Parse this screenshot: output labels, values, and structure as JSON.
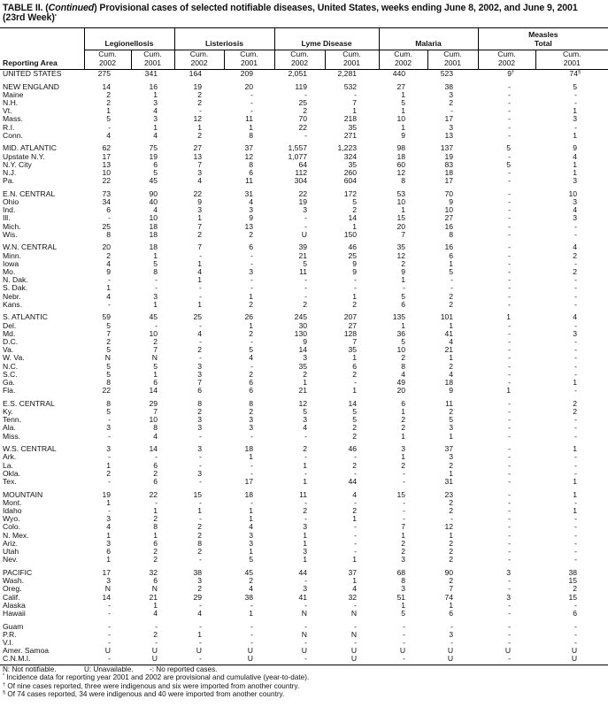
{
  "title": {
    "prefix": "TABLE II. (",
    "continued": "Continued",
    "text": ") Provisional cases of selected notifiable diseases, United States, weeks ending June 8, 2002, and June 9, 2001 (23rd Week)",
    "marker": "*"
  },
  "header": {
    "reporting_area": "Reporting Area",
    "groups": [
      "Legionellosis",
      "Listeriosis",
      "Lyme Disease",
      "Malaria",
      "Measles Total"
    ],
    "measles_line1": "Measles",
    "measles_line2": "Total",
    "cum_2002": "Cum. 2002",
    "cum_2001": "Cum. 2001"
  },
  "sections": [
    [
      [
        "UNITED STATES",
        "275",
        "341",
        "164",
        "209",
        "2,051",
        "2,281",
        "440",
        "523",
        "9",
        "74"
      ]
    ],
    [
      [
        "NEW ENGLAND",
        "14",
        "16",
        "19",
        "20",
        "119",
        "532",
        "27",
        "38",
        "-",
        "5"
      ],
      [
        "Maine",
        "2",
        "1",
        "2",
        "-",
        "-",
        "-",
        "1",
        "3",
        "-",
        "-"
      ],
      [
        "N.H.",
        "2",
        "3",
        "2",
        "-",
        "25",
        "7",
        "5",
        "2",
        "-",
        "-"
      ],
      [
        "Vt.",
        "1",
        "4",
        "-",
        "-",
        "2",
        "1",
        "1",
        "-",
        "-",
        "1"
      ],
      [
        "Mass.",
        "5",
        "3",
        "12",
        "11",
        "70",
        "218",
        "10",
        "17",
        "-",
        "3"
      ],
      [
        "R.I.",
        "-",
        "1",
        "1",
        "1",
        "22",
        "35",
        "1",
        "3",
        "-",
        "-"
      ],
      [
        "Conn.",
        "4",
        "4",
        "2",
        "8",
        "-",
        "271",
        "9",
        "13",
        "-",
        "1"
      ]
    ],
    [
      [
        "MID. ATLANTIC",
        "62",
        "75",
        "27",
        "37",
        "1,557",
        "1,223",
        "98",
        "137",
        "5",
        "9"
      ],
      [
        "Upstate N.Y.",
        "17",
        "19",
        "13",
        "12",
        "1,077",
        "324",
        "18",
        "19",
        "-",
        "4"
      ],
      [
        "N.Y. City",
        "13",
        "6",
        "7",
        "8",
        "64",
        "35",
        "60",
        "83",
        "5",
        "1"
      ],
      [
        "N.J.",
        "10",
        "5",
        "3",
        "6",
        "112",
        "260",
        "12",
        "18",
        "-",
        "1"
      ],
      [
        "Pa.",
        "22",
        "45",
        "4",
        "11",
        "304",
        "604",
        "8",
        "17",
        "-",
        "3"
      ]
    ],
    [
      [
        "E.N. CENTRAL",
        "73",
        "90",
        "22",
        "31",
        "22",
        "172",
        "53",
        "70",
        "-",
        "10"
      ],
      [
        "Ohio",
        "34",
        "40",
        "9",
        "4",
        "19",
        "5",
        "10",
        "9",
        "-",
        "3"
      ],
      [
        "Ind.",
        "6",
        "4",
        "3",
        "3",
        "3",
        "2",
        "1",
        "10",
        "-",
        "4"
      ],
      [
        "Ill.",
        "-",
        "10",
        "1",
        "9",
        "-",
        "14",
        "15",
        "27",
        "-",
        "3"
      ],
      [
        "Mich.",
        "25",
        "18",
        "7",
        "13",
        "-",
        "1",
        "20",
        "16",
        "-",
        "-"
      ],
      [
        "Wis.",
        "8",
        "18",
        "2",
        "2",
        "U",
        "150",
        "7",
        "8",
        "-",
        "-"
      ]
    ],
    [
      [
        "W.N. CENTRAL",
        "20",
        "18",
        "7",
        "6",
        "39",
        "46",
        "35",
        "16",
        "-",
        "4"
      ],
      [
        "Minn.",
        "2",
        "1",
        "-",
        "-",
        "21",
        "25",
        "12",
        "6",
        "-",
        "2"
      ],
      [
        "Iowa",
        "4",
        "5",
        "1",
        "-",
        "5",
        "9",
        "2",
        "1",
        "-",
        "-"
      ],
      [
        "Mo.",
        "9",
        "8",
        "4",
        "3",
        "11",
        "9",
        "9",
        "5",
        "-",
        "2"
      ],
      [
        "N. Dak.",
        "-",
        "-",
        "1",
        "-",
        "-",
        "-",
        "1",
        "-",
        "-",
        "-"
      ],
      [
        "S. Dak.",
        "1",
        "-",
        "-",
        "-",
        "-",
        "-",
        "-",
        "-",
        "-",
        "-"
      ],
      [
        "Nebr.",
        "4",
        "3",
        "-",
        "1",
        "-",
        "1",
        "5",
        "2",
        "-",
        "-"
      ],
      [
        "Kans.",
        "-",
        "1",
        "1",
        "2",
        "2",
        "2",
        "6",
        "2",
        "-",
        "-"
      ]
    ],
    [
      [
        "S. ATLANTIC",
        "59",
        "45",
        "25",
        "26",
        "245",
        "207",
        "135",
        "101",
        "1",
        "4"
      ],
      [
        "Del.",
        "5",
        "-",
        "-",
        "1",
        "30",
        "27",
        "1",
        "1",
        "-",
        "-"
      ],
      [
        "Md.",
        "7",
        "10",
        "4",
        "2",
        "130",
        "128",
        "36",
        "41",
        "-",
        "3"
      ],
      [
        "D.C.",
        "2",
        "2",
        "-",
        "-",
        "9",
        "7",
        "5",
        "4",
        "-",
        "-"
      ],
      [
        "Va.",
        "5",
        "7",
        "2",
        "5",
        "14",
        "35",
        "10",
        "21",
        "-",
        "-"
      ],
      [
        "W. Va.",
        "N",
        "N",
        "-",
        "4",
        "3",
        "1",
        "2",
        "1",
        "-",
        "-"
      ],
      [
        "N.C.",
        "5",
        "5",
        "3",
        "-",
        "35",
        "6",
        "8",
        "2",
        "-",
        "-"
      ],
      [
        "S.C.",
        "5",
        "1",
        "3",
        "2",
        "2",
        "2",
        "4",
        "4",
        "-",
        "-"
      ],
      [
        "Ga.",
        "8",
        "6",
        "7",
        "6",
        "1",
        "-",
        "49",
        "18",
        "-",
        "1"
      ],
      [
        "Fla.",
        "22",
        "14",
        "6",
        "6",
        "21",
        "1",
        "20",
        "9",
        "1",
        "-"
      ]
    ],
    [
      [
        "E.S. CENTRAL",
        "8",
        "29",
        "8",
        "8",
        "12",
        "14",
        "6",
        "11",
        "-",
        "2"
      ],
      [
        "Ky.",
        "5",
        "7",
        "2",
        "2",
        "5",
        "5",
        "1",
        "2",
        "-",
        "2"
      ],
      [
        "Tenn.",
        "-",
        "10",
        "3",
        "3",
        "3",
        "5",
        "2",
        "5",
        "-",
        "-"
      ],
      [
        "Ala.",
        "3",
        "8",
        "3",
        "3",
        "4",
        "2",
        "2",
        "3",
        "-",
        "-"
      ],
      [
        "Miss.",
        "-",
        "4",
        "-",
        "-",
        "-",
        "2",
        "1",
        "1",
        "-",
        "-"
      ]
    ],
    [
      [
        "W.S. CENTRAL",
        "3",
        "14",
        "3",
        "18",
        "2",
        "46",
        "3",
        "37",
        "-",
        "1"
      ],
      [
        "Ark.",
        "-",
        "-",
        "-",
        "1",
        "-",
        "-",
        "1",
        "3",
        "-",
        "-"
      ],
      [
        "La.",
        "1",
        "6",
        "-",
        "-",
        "1",
        "2",
        "2",
        "2",
        "-",
        "-"
      ],
      [
        "Okla.",
        "2",
        "2",
        "3",
        "-",
        "-",
        "-",
        "-",
        "1",
        "-",
        "-"
      ],
      [
        "Tex.",
        "-",
        "6",
        "-",
        "17",
        "1",
        "44",
        "-",
        "31",
        "-",
        "1"
      ]
    ],
    [
      [
        "MOUNTAIN",
        "19",
        "22",
        "15",
        "18",
        "11",
        "4",
        "15",
        "23",
        "-",
        "1"
      ],
      [
        "Mont.",
        "1",
        "-",
        "-",
        "-",
        "-",
        "-",
        "-",
        "2",
        "-",
        "-"
      ],
      [
        "Idaho",
        "-",
        "1",
        "1",
        "1",
        "2",
        "2",
        "-",
        "2",
        "-",
        "1"
      ],
      [
        "Wyo.",
        "3",
        "2",
        "-",
        "1",
        "-",
        "1",
        "-",
        "-",
        "-",
        "-"
      ],
      [
        "Colo.",
        "4",
        "8",
        "2",
        "4",
        "3",
        "-",
        "7",
        "12",
        "-",
        "-"
      ],
      [
        "N. Mex.",
        "1",
        "1",
        "2",
        "3",
        "1",
        "-",
        "1",
        "1",
        "-",
        "-"
      ],
      [
        "Ariz.",
        "3",
        "6",
        "8",
        "3",
        "1",
        "-",
        "2",
        "2",
        "-",
        "-"
      ],
      [
        "Utah",
        "6",
        "2",
        "2",
        "1",
        "3",
        "-",
        "2",
        "2",
        "-",
        "-"
      ],
      [
        "Nev.",
        "1",
        "2",
        "-",
        "5",
        "1",
        "1",
        "3",
        "2",
        "-",
        "-"
      ]
    ],
    [
      [
        "PACIFIC",
        "17",
        "32",
        "38",
        "45",
        "44",
        "37",
        "68",
        "90",
        "3",
        "38"
      ],
      [
        "Wash.",
        "3",
        "6",
        "3",
        "2",
        "-",
        "1",
        "8",
        "2",
        "-",
        "15"
      ],
      [
        "Oreg.",
        "N",
        "N",
        "2",
        "4",
        "3",
        "4",
        "3",
        "7",
        "-",
        "2"
      ],
      [
        "Calif.",
        "14",
        "21",
        "29",
        "38",
        "41",
        "32",
        "51",
        "74",
        "3",
        "15"
      ],
      [
        "Alaska",
        "-",
        "1",
        "-",
        "-",
        "-",
        "-",
        "1",
        "1",
        "-",
        "-"
      ],
      [
        "Hawaii",
        "-",
        "4",
        "4",
        "1",
        "N",
        "N",
        "5",
        "6",
        "-",
        "6"
      ]
    ],
    [
      [
        "Guam",
        "-",
        "-",
        "-",
        "-",
        "-",
        "-",
        "-",
        "-",
        "-",
        "-"
      ],
      [
        "P.R.",
        "-",
        "2",
        "1",
        "-",
        "N",
        "N",
        "-",
        "3",
        "-",
        "-"
      ],
      [
        "V.I.",
        "-",
        "-",
        "-",
        "-",
        "-",
        "-",
        "-",
        "-",
        "-",
        "-"
      ],
      [
        "Amer. Samoa",
        "U",
        "U",
        "U",
        "U",
        "U",
        "U",
        "U",
        "U",
        "U",
        "U"
      ],
      [
        "C.N.M.I.",
        "-",
        "U",
        "-",
        "U",
        "-",
        "U",
        "-",
        "U",
        "-",
        "U"
      ]
    ]
  ],
  "superscripts": {
    "us_measles_2002": "†",
    "us_measles_2001": "§"
  },
  "footnotes": {
    "legend_n": "N: Not notifiable.",
    "legend_u": "U: Unavailable.",
    "legend_dash": "-: No reported cases.",
    "notes": [
      {
        "marker": "*",
        "text": " Incidence data for reporting year 2001 and 2002 are provisional and cumulative (year-to-date)."
      },
      {
        "marker": "†",
        "text": " Of nine cases reported, three were indigenous and six were imported from another country."
      },
      {
        "marker": "§",
        "text": " Of 74 cases reported, 34 were indigenous and 40 were imported from another country."
      }
    ]
  }
}
